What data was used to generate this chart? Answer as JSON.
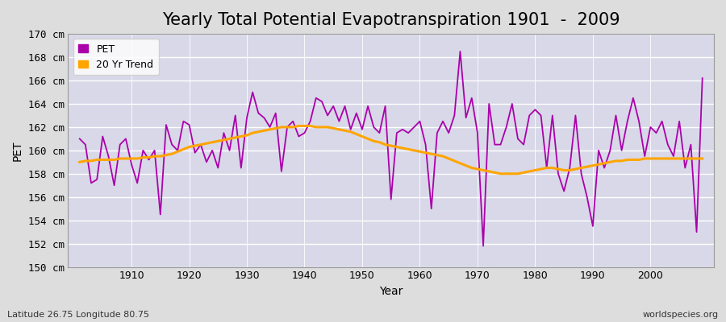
{
  "title": "Yearly Total Potential Evapotranspiration 1901  -  2009",
  "xlabel": "Year",
  "ylabel": "PET",
  "lat_lon_label": "Latitude 26.75 Longitude 80.75",
  "watermark": "worldspecies.org",
  "ylim": [
    150,
    170
  ],
  "xlim": [
    1899,
    2011
  ],
  "ytick_step": 2,
  "xticks": [
    1910,
    1920,
    1930,
    1940,
    1950,
    1960,
    1970,
    1980,
    1990,
    2000
  ],
  "years": [
    1901,
    1902,
    1903,
    1904,
    1905,
    1906,
    1907,
    1908,
    1909,
    1910,
    1911,
    1912,
    1913,
    1914,
    1915,
    1916,
    1917,
    1918,
    1919,
    1920,
    1921,
    1922,
    1923,
    1924,
    1925,
    1926,
    1927,
    1928,
    1929,
    1930,
    1931,
    1932,
    1933,
    1934,
    1935,
    1936,
    1937,
    1938,
    1939,
    1940,
    1941,
    1942,
    1943,
    1944,
    1945,
    1946,
    1947,
    1948,
    1949,
    1950,
    1951,
    1952,
    1953,
    1954,
    1955,
    1956,
    1957,
    1958,
    1959,
    1960,
    1961,
    1962,
    1963,
    1964,
    1965,
    1966,
    1967,
    1968,
    1969,
    1970,
    1971,
    1972,
    1973,
    1974,
    1975,
    1976,
    1977,
    1978,
    1979,
    1980,
    1981,
    1982,
    1983,
    1984,
    1985,
    1986,
    1987,
    1988,
    1989,
    1990,
    1991,
    1992,
    1993,
    1994,
    1995,
    1996,
    1997,
    1998,
    1999,
    2000,
    2001,
    2002,
    2003,
    2004,
    2005,
    2006,
    2007,
    2008,
    2009
  ],
  "pet": [
    161.0,
    160.5,
    157.2,
    157.5,
    161.2,
    159.5,
    157.0,
    160.5,
    161.0,
    158.8,
    157.2,
    160.0,
    159.2,
    160.0,
    154.5,
    162.2,
    160.5,
    160.0,
    162.5,
    162.2,
    159.8,
    160.5,
    159.0,
    160.0,
    158.5,
    161.5,
    160.0,
    163.0,
    158.5,
    162.8,
    165.0,
    163.2,
    162.8,
    162.0,
    163.2,
    158.2,
    162.0,
    162.5,
    161.2,
    161.5,
    162.5,
    164.5,
    164.2,
    163.0,
    163.8,
    162.5,
    163.8,
    161.8,
    163.2,
    161.8,
    163.8,
    162.0,
    161.5,
    163.8,
    155.8,
    161.5,
    161.8,
    161.5,
    162.0,
    162.5,
    160.5,
    155.0,
    161.5,
    162.5,
    161.5,
    163.0,
    168.5,
    162.8,
    164.5,
    161.5,
    151.8,
    164.0,
    160.5,
    160.5,
    162.0,
    164.0,
    161.0,
    160.5,
    163.0,
    163.5,
    163.0,
    158.5,
    163.0,
    158.0,
    156.5,
    158.5,
    163.0,
    158.0,
    156.0,
    153.5,
    160.0,
    158.5,
    160.0,
    163.0,
    160.0,
    162.5,
    164.5,
    162.5,
    159.5,
    162.0,
    161.5,
    162.5,
    160.5,
    159.5,
    162.5,
    158.5,
    160.5,
    153.0,
    166.2
  ],
  "trend": [
    159.0,
    159.1,
    159.1,
    159.2,
    159.2,
    159.2,
    159.2,
    159.3,
    159.3,
    159.3,
    159.3,
    159.4,
    159.4,
    159.5,
    159.5,
    159.6,
    159.7,
    159.9,
    160.1,
    160.3,
    160.4,
    160.5,
    160.6,
    160.7,
    160.8,
    160.9,
    161.0,
    161.1,
    161.2,
    161.3,
    161.5,
    161.6,
    161.7,
    161.8,
    161.9,
    162.0,
    162.0,
    162.0,
    162.1,
    162.1,
    162.1,
    162.0,
    162.0,
    162.0,
    161.9,
    161.8,
    161.7,
    161.6,
    161.4,
    161.2,
    161.0,
    160.8,
    160.7,
    160.5,
    160.4,
    160.3,
    160.2,
    160.1,
    160.0,
    159.9,
    159.8,
    159.7,
    159.6,
    159.5,
    159.3,
    159.1,
    158.9,
    158.7,
    158.5,
    158.4,
    158.3,
    158.2,
    158.1,
    158.0,
    158.0,
    158.0,
    158.0,
    158.1,
    158.2,
    158.3,
    158.4,
    158.5,
    158.5,
    158.4,
    158.3,
    158.3,
    158.4,
    158.5,
    158.6,
    158.7,
    158.8,
    158.9,
    159.0,
    159.1,
    159.1,
    159.2,
    159.2,
    159.2,
    159.3,
    159.3,
    159.3,
    159.3,
    159.3,
    159.3,
    159.3,
    159.3,
    159.3,
    159.3,
    159.3
  ],
  "pet_color": "#AA00AA",
  "trend_color": "#FFA500",
  "fig_bg_color": "#DDDDDD",
  "plot_bg_color": "#D8D8E8",
  "grid_color": "#FFFFFF",
  "title_fontsize": 15,
  "label_fontsize": 10,
  "tick_fontsize": 9,
  "legend_fontsize": 9
}
